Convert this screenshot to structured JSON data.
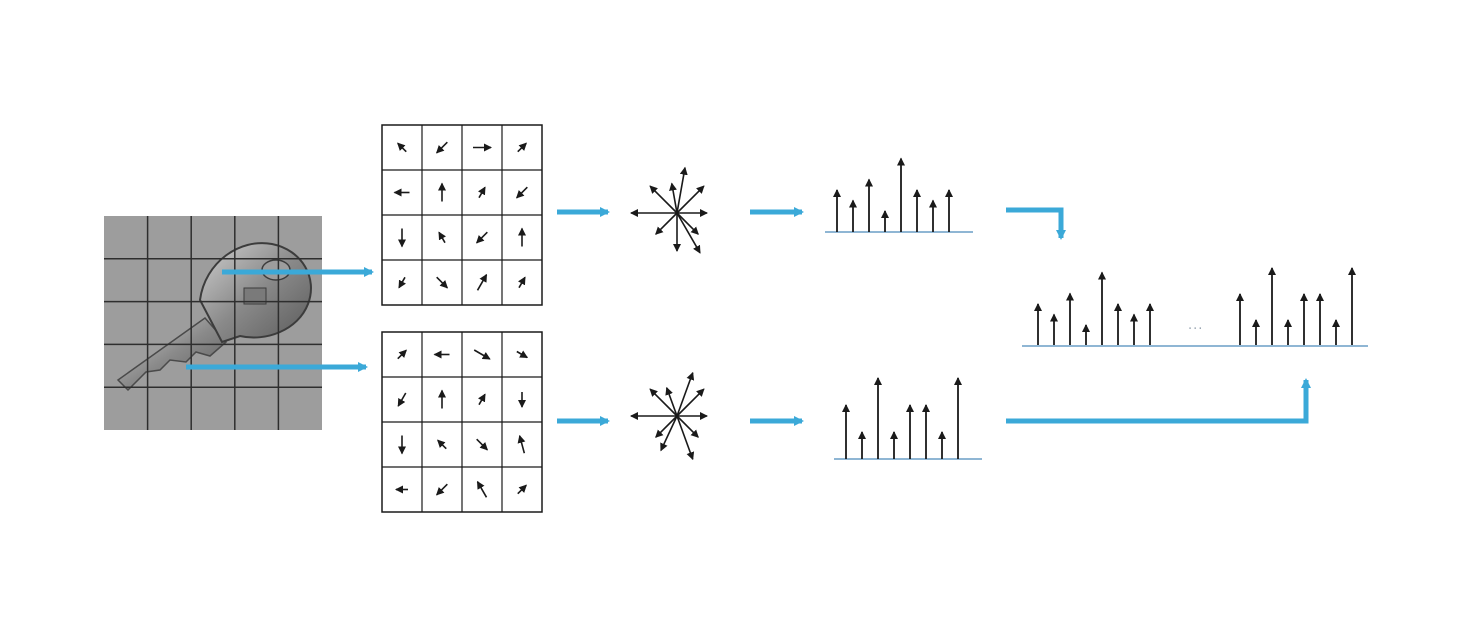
{
  "accent_color": "#3ba9d8",
  "ink_color": "#1a1a1a",
  "image_tile": {
    "grid_rows": 5,
    "grid_cols": 5,
    "subject_icon": "key-icon"
  },
  "gradient_grids": [
    {
      "name": "top",
      "cells": [
        [
          135,
          225,
          0,
          45
        ],
        [
          180,
          90,
          60,
          225
        ],
        [
          270,
          120,
          225,
          90
        ],
        [
          240,
          315,
          60,
          60
        ]
      ]
    },
    {
      "name": "bottom",
      "cells": [
        [
          45,
          180,
          330,
          330
        ],
        [
          240,
          90,
          60,
          270
        ],
        [
          270,
          135,
          315,
          105
        ],
        [
          180,
          225,
          120,
          45
        ]
      ]
    }
  ],
  "orientation_stars": [
    {
      "name": "top",
      "angles": [
        0,
        45,
        80,
        100,
        135,
        180,
        225,
        270,
        300,
        315
      ]
    },
    {
      "name": "bottom",
      "angles": [
        0,
        45,
        70,
        110,
        135,
        180,
        225,
        245,
        290,
        315
      ]
    }
  ],
  "histograms": [
    {
      "name": "top",
      "values": [
        4,
        3,
        5,
        2,
        7,
        4,
        3,
        4
      ]
    },
    {
      "name": "bottom",
      "values": [
        4,
        2,
        6,
        2,
        4,
        4,
        2,
        6
      ]
    }
  ],
  "concatenated_histogram": {
    "left_values": [
      4,
      3,
      5,
      2,
      7,
      4,
      3,
      4
    ],
    "right_values": [
      4,
      2,
      6,
      2,
      4,
      4,
      2,
      6
    ],
    "separator": "..."
  }
}
